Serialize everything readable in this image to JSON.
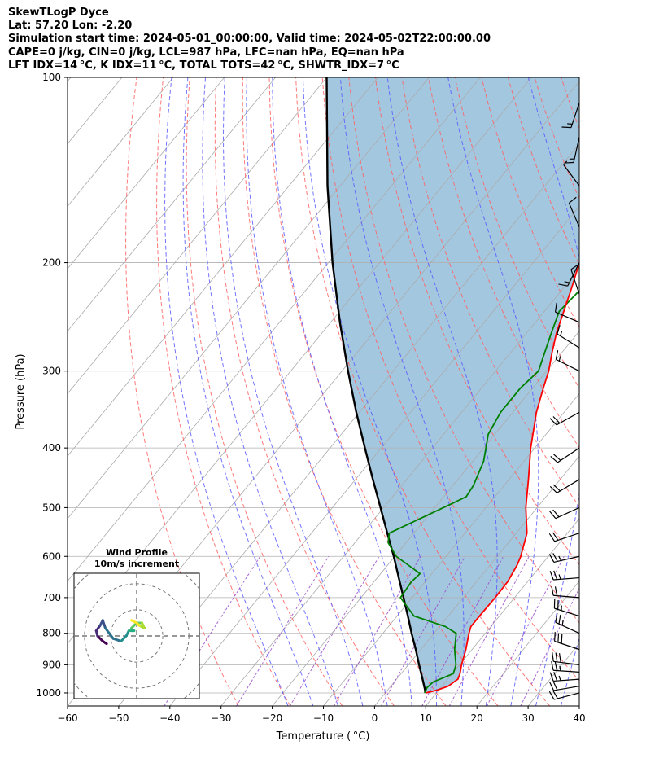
{
  "header": {
    "lines": [
      "SkewTLogP Dyce",
      "Lat: 57.20   Lon: -2.20",
      "Simulation start time: 2024-05-01_00:00:00, Valid time: 2024-05-02T22:00:00.00",
      "CAPE=0 j/kg, CIN=0 j/kg, LCL=987 hPa, LFC=nan hPa, EQ=nan hPa",
      "LFT IDX=14 °C, K IDX=11 °C, TOTAL TOTS=42 °C, SHWTR_IDX=7 °C"
    ]
  },
  "chart_data": {
    "type": "line",
    "subtype": "skew-t log-p",
    "xlabel": "Temperature ( °C)",
    "ylabel": "Pressure (hPa)",
    "xlim": [
      -60,
      40
    ],
    "ylim": [
      1050,
      100
    ],
    "y_scale": "log",
    "grid": true,
    "x_ticks": [
      -60,
      -50,
      -40,
      -30,
      -20,
      -10,
      0,
      10,
      20,
      30,
      40
    ],
    "y_ticks": [
      100,
      200,
      300,
      400,
      500,
      600,
      700,
      800,
      900,
      1000
    ],
    "colors": {
      "temperature": "#ff0000",
      "dewpoint": "#008000",
      "parcel": "#000000",
      "fill": "#a4c7e0",
      "dry_adiabats": "#ff6060",
      "moist_adiabats": "#5a5aff",
      "mixing_ratio": "#9a4dc9",
      "isotherms": "#aaaaaa"
    },
    "series": [
      {
        "key": "temperature",
        "points": [
          [
            1000,
            7.9
          ],
          [
            990,
            9.6
          ],
          [
            975,
            11.2
          ],
          [
            950,
            12.0
          ],
          [
            930,
            11.5
          ],
          [
            900,
            10.4
          ],
          [
            850,
            8.8
          ],
          [
            800,
            6.8
          ],
          [
            780,
            6.1
          ],
          [
            750,
            6.1
          ],
          [
            700,
            6.2
          ],
          [
            660,
            6.1
          ],
          [
            620,
            5.3
          ],
          [
            600,
            4.6
          ],
          [
            550,
            2.1
          ],
          [
            500,
            -2.2
          ],
          [
            450,
            -6.2
          ],
          [
            400,
            -10.8
          ],
          [
            350,
            -15.4
          ],
          [
            320,
            -17.9
          ],
          [
            300,
            -19.6
          ],
          [
            280,
            -21.9
          ],
          [
            260,
            -24.2
          ],
          [
            240,
            -26.2
          ],
          [
            220,
            -28.4
          ],
          [
            205,
            -30.3
          ],
          [
            200,
            -30.6
          ],
          [
            190,
            -30.8
          ],
          [
            175,
            -32.0
          ],
          [
            165,
            -33.3
          ],
          [
            150,
            -36.8
          ],
          [
            140,
            -39.6
          ],
          [
            130,
            -44.4
          ],
          [
            120,
            -47.7
          ],
          [
            110,
            -51.4
          ],
          [
            100,
            -54.8
          ]
        ]
      },
      {
        "key": "dewpoint",
        "points": [
          [
            1000,
            7.7
          ],
          [
            980,
            7.3
          ],
          [
            960,
            7.6
          ],
          [
            930,
            10.2
          ],
          [
            900,
            9.3
          ],
          [
            850,
            6.6
          ],
          [
            800,
            4.3
          ],
          [
            780,
            1.1
          ],
          [
            750,
            -6.7
          ],
          [
            700,
            -12.3
          ],
          [
            660,
            -12.7
          ],
          [
            640,
            -12.3
          ],
          [
            600,
            -19.7
          ],
          [
            570,
            -23.5
          ],
          [
            550,
            -24.8
          ],
          [
            500,
            -18.3
          ],
          [
            480,
            -15.6
          ],
          [
            460,
            -16.0
          ],
          [
            420,
            -17.9
          ],
          [
            380,
            -21.3
          ],
          [
            350,
            -22.4
          ],
          [
            320,
            -22.4
          ],
          [
            300,
            -21.6
          ],
          [
            260,
            -25.2
          ],
          [
            240,
            -27.1
          ],
          [
            220,
            -26.4
          ],
          [
            200,
            -26.7
          ],
          [
            190,
            -28.6
          ],
          [
            175,
            -33.1
          ],
          [
            160,
            -37.9
          ],
          [
            150,
            -39.6
          ],
          [
            130,
            -42.1
          ],
          [
            120,
            -44.3
          ],
          [
            100,
            -51.4
          ]
        ]
      },
      {
        "key": "parcel",
        "points": [
          [
            1000,
            7.8
          ],
          [
            987,
            7.2
          ],
          [
            950,
            5.1
          ],
          [
            900,
            2.1
          ],
          [
            850,
            -1.0
          ],
          [
            800,
            -4.4
          ],
          [
            750,
            -7.9
          ],
          [
            700,
            -11.7
          ],
          [
            650,
            -15.8
          ],
          [
            600,
            -20.2
          ],
          [
            550,
            -25.2
          ],
          [
            500,
            -30.6
          ],
          [
            450,
            -36.6
          ],
          [
            400,
            -43.2
          ],
          [
            350,
            -50.6
          ],
          [
            300,
            -58.8
          ],
          [
            250,
            -68.2
          ],
          [
            200,
            -79.2
          ],
          [
            150,
            -92.5
          ],
          [
            100,
            -110.0
          ]
        ]
      }
    ],
    "wind_barbs": [
      {
        "p": 1000,
        "u": -11.5,
        "v": -3
      },
      {
        "p": 975,
        "u": -12,
        "v": -2
      },
      {
        "p": 950,
        "u": -14,
        "v": -1
      },
      {
        "p": 925,
        "u": -15,
        "v": 1
      },
      {
        "p": 900,
        "u": -15.5,
        "v": 2
      },
      {
        "p": 850,
        "u": -15,
        "v": 5
      },
      {
        "p": 800,
        "u": -13,
        "v": 6
      },
      {
        "p": 750,
        "u": -13,
        "v": 4
      },
      {
        "p": 700,
        "u": -12,
        "v": 1
      },
      {
        "p": 650,
        "u": -13,
        "v": -1
      },
      {
        "p": 600,
        "u": -13,
        "v": -3
      },
      {
        "p": 550,
        "u": -12,
        "v": -4
      },
      {
        "p": 500,
        "u": -11,
        "v": -5
      },
      {
        "p": 450,
        "u": -10,
        "v": -6
      },
      {
        "p": 400,
        "u": -9,
        "v": -6
      },
      {
        "p": 350,
        "u": -9,
        "v": -5
      },
      {
        "p": 300,
        "u": -8,
        "v": 4
      },
      {
        "p": 275,
        "u": -8,
        "v": 5
      },
      {
        "p": 250,
        "u": -7,
        "v": 3
      },
      {
        "p": 225,
        "u": -2,
        "v": 6
      },
      {
        "p": 200,
        "u": -4,
        "v": -8
      },
      {
        "p": 175,
        "u": -3,
        "v": 7
      },
      {
        "p": 150,
        "u": -3,
        "v": 4
      },
      {
        "p": 125,
        "u": -2,
        "v": -9
      },
      {
        "p": 110,
        "u": -3,
        "v": -9
      }
    ],
    "inset": {
      "title": "Wind Profile",
      "subtitle": "10m/s increment",
      "ring_step": 10,
      "colormap": "viridis",
      "hodograph": [
        [
          -11.5,
          -3
        ],
        [
          -13,
          -2
        ],
        [
          -15,
          0
        ],
        [
          -15.5,
          2
        ],
        [
          -14,
          4
        ],
        [
          -13,
          6
        ],
        [
          -12,
          3
        ],
        [
          -9,
          -1
        ],
        [
          -6,
          -2
        ],
        [
          -4,
          0
        ],
        [
          -3,
          2
        ],
        [
          -1,
          2
        ],
        [
          -2,
          3
        ],
        [
          0,
          5
        ],
        [
          2,
          5
        ],
        [
          3,
          3
        ],
        [
          1,
          4
        ],
        [
          0,
          5
        ],
        [
          -2,
          6
        ]
      ]
    }
  }
}
